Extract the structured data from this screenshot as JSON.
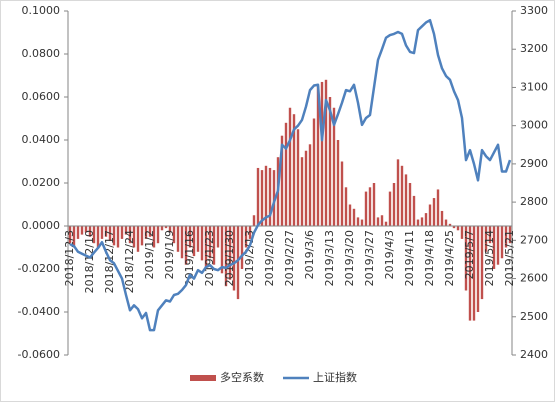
{
  "chart_data": {
    "type": "bar-line",
    "categories": [
      "2018/12/3",
      null,
      null,
      null,
      null,
      "2018/12/10",
      null,
      null,
      null,
      null,
      "2018/12/17",
      null,
      null,
      null,
      null,
      "2018/12/24",
      null,
      null,
      null,
      null,
      "2019/1/2",
      null,
      null,
      null,
      null,
      "2019/1/9",
      null,
      null,
      null,
      null,
      "2019/1/16",
      null,
      null,
      null,
      null,
      "2019/1/23",
      null,
      null,
      null,
      null,
      "2019/1/30",
      null,
      null,
      null,
      null,
      "2019/2/13",
      null,
      null,
      null,
      null,
      "2019/2/20",
      null,
      null,
      null,
      null,
      "2019/2/27",
      null,
      null,
      null,
      null,
      "2019/3/6",
      null,
      null,
      null,
      null,
      "2019/3/13",
      null,
      null,
      null,
      null,
      "2019/3/20",
      null,
      null,
      null,
      null,
      "2019/3/27",
      null,
      null,
      null,
      null,
      "2019/4/3",
      null,
      null,
      null,
      null,
      "2019/4/11",
      null,
      null,
      null,
      null,
      "2019/4/18",
      null,
      null,
      null,
      null,
      "2019/4/25",
      null,
      null,
      null,
      null,
      "2019/5/7",
      null,
      null,
      null,
      null,
      "2019/5/14",
      null,
      null,
      null,
      null,
      "2019/5/21"
    ],
    "series": [
      {
        "name": "多空系数",
        "kind": "bar",
        "color": "#c0504d",
        "values": [
          -0.008,
          -0.01,
          -0.006,
          -0.004,
          -0.003,
          -0.005,
          -0.008,
          -0.01,
          -0.006,
          -0.005,
          -0.007,
          -0.009,
          -0.01,
          -0.006,
          -0.004,
          -0.008,
          -0.01,
          -0.012,
          -0.009,
          -0.006,
          -0.005,
          -0.01,
          -0.008,
          -0.002,
          -0.001,
          -0.003,
          -0.008,
          -0.012,
          -0.015,
          -0.018,
          -0.01,
          -0.014,
          -0.012,
          -0.016,
          -0.02,
          -0.015,
          -0.018,
          -0.01,
          -0.022,
          -0.028,
          -0.025,
          -0.03,
          -0.034,
          -0.02,
          -0.01,
          -0.006,
          0.005,
          0.027,
          0.026,
          0.028,
          0.027,
          0.026,
          0.032,
          0.042,
          0.048,
          0.055,
          0.052,
          0.045,
          0.032,
          0.035,
          0.038,
          0.05,
          0.065,
          0.067,
          0.068,
          0.06,
          0.055,
          0.04,
          0.03,
          0.018,
          0.01,
          0.008,
          0.004,
          0.003,
          0.016,
          0.018,
          0.02,
          0.004,
          0.005,
          0.002,
          0.016,
          0.02,
          0.031,
          0.028,
          0.024,
          0.02,
          0.014,
          0.003,
          0.004,
          0.006,
          0.01,
          0.013,
          0.017,
          0.007,
          0.003,
          0.001,
          -0.001,
          -0.002,
          -0.006,
          -0.03,
          -0.044,
          -0.044,
          -0.04,
          -0.034,
          -0.012,
          -0.008,
          -0.02,
          -0.018,
          -0.015,
          -0.01,
          -0.008
        ]
      },
      {
        "name": "上证指数",
        "kind": "line",
        "axis": "y2",
        "color": "#4f81bd",
        "values": [
          2690,
          2685,
          2670,
          2665,
          2660,
          2655,
          2668,
          2680,
          2695,
          2670,
          2648,
          2640,
          2620,
          2600,
          2557,
          2517,
          2530,
          2520,
          2496,
          2510,
          2465,
          2465,
          2517,
          2530,
          2543,
          2540,
          2557,
          2560,
          2570,
          2583,
          2610,
          2600,
          2622,
          2615,
          2630,
          2635,
          2625,
          2622,
          2630,
          2628,
          2635,
          2640,
          2648,
          2660,
          2670,
          2687,
          2720,
          2740,
          2752,
          2760,
          2765,
          2800,
          2830,
          2950,
          2940,
          2962,
          2990,
          3000,
          3015,
          3050,
          3093,
          3105,
          3107,
          2962,
          3067,
          3040,
          3002,
          3030,
          3060,
          3093,
          3090,
          3107,
          3060,
          3002,
          3020,
          3028,
          3100,
          3172,
          3200,
          3230,
          3237,
          3240,
          3245,
          3240,
          3210,
          3193,
          3190,
          3250,
          3260,
          3270,
          3276,
          3240,
          3185,
          3150,
          3130,
          3120,
          3090,
          3067,
          3020,
          2910,
          2936,
          2900,
          2857,
          2936,
          2920,
          2910,
          2930,
          2950,
          2880,
          2880,
          2910
        ]
      }
    ],
    "ylim": [
      -0.06,
      0.1
    ],
    "yticks": [
      {
        "value": -0.06,
        "label": "-0.0600"
      },
      {
        "value": -0.04,
        "label": "-0.0400"
      },
      {
        "value": -0.02,
        "label": "-0.0200"
      },
      {
        "value": 0,
        "label": "0.0000"
      },
      {
        "value": 0.02,
        "label": "0.0200"
      },
      {
        "value": 0.04,
        "label": "0.0400"
      },
      {
        "value": 0.06,
        "label": "0.0600"
      },
      {
        "value": 0.08,
        "label": "0.0800"
      },
      {
        "value": 0.1,
        "label": "0.1000"
      }
    ],
    "y2lim": [
      2400,
      3300
    ],
    "y2ticks": [
      2400,
      2500,
      2600,
      2700,
      2800,
      2900,
      3000,
      3100,
      3200,
      3300
    ],
    "legend": "bottom"
  }
}
